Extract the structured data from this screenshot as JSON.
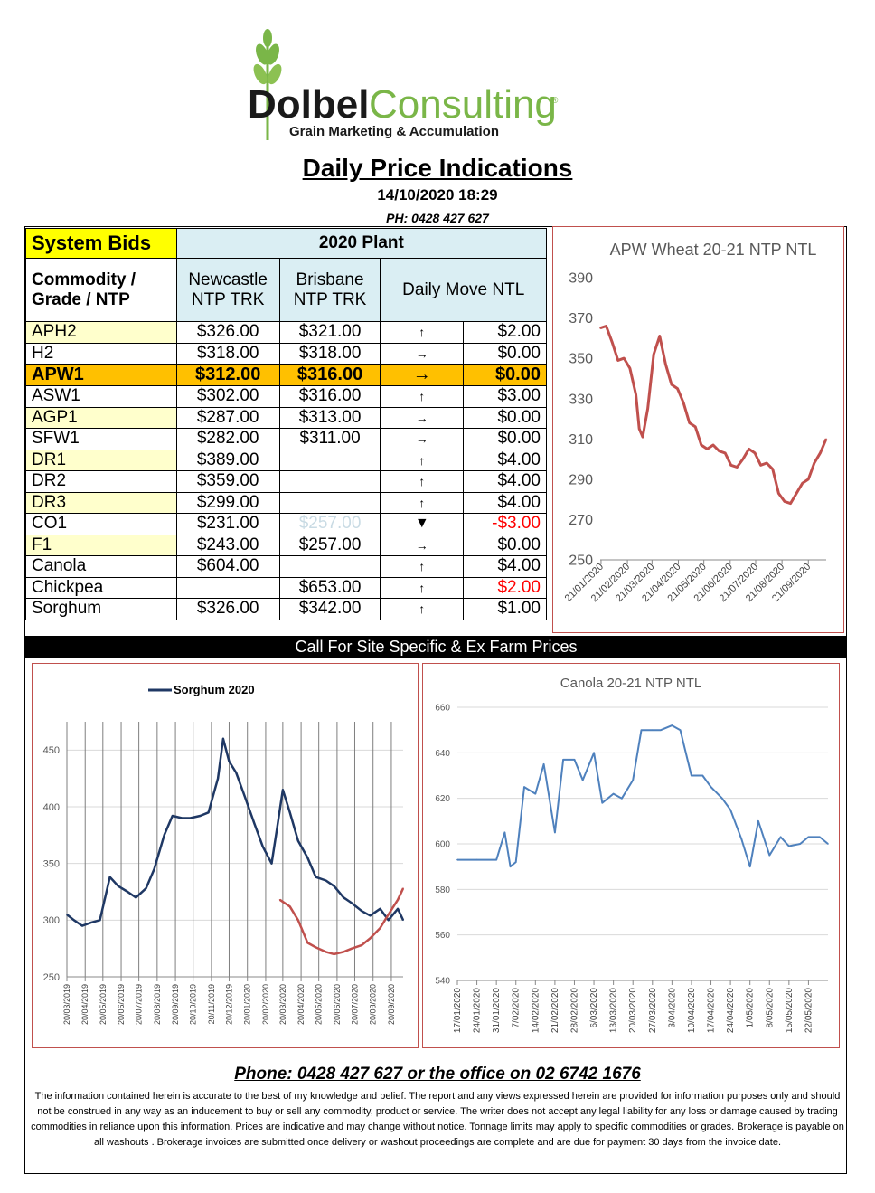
{
  "logo": {
    "brand_dark": "Dolbel",
    "brand_light": "Consulting",
    "registered": "®",
    "tagline": "Grain Marketing & Accumulation",
    "colors": {
      "dark": "#1a1a1a",
      "green": "#7ab648"
    }
  },
  "header": {
    "title": "Daily Price Indications",
    "datetime": "14/10/2020 18:29",
    "phone": "PH: 0428 427 627"
  },
  "table": {
    "system_bids": "System Bids",
    "plant": "2020 Plant",
    "col_commodity": "Commodity / Grade / NTP",
    "col_newcastle": "Newcastle NTP TRK",
    "col_brisbane": "Brisbane NTP TRK",
    "col_move": "Daily  Move NTL",
    "rows": [
      {
        "grade": "APH2",
        "newcastle": "$326.00",
        "brisbane": "$321.00",
        "arrow": "↑",
        "move": "$2.00"
      },
      {
        "grade": "H2",
        "newcastle": "$318.00",
        "brisbane": "$318.00",
        "arrow": "→",
        "move": "$0.00"
      },
      {
        "grade": "APW1",
        "newcastle": "$312.00",
        "brisbane": "$316.00",
        "arrow": "→",
        "move": "$0.00"
      },
      {
        "grade": "ASW1",
        "newcastle": "$302.00",
        "brisbane": "$316.00",
        "arrow": "↑",
        "move": "$3.00"
      },
      {
        "grade": "AGP1",
        "newcastle": "$287.00",
        "brisbane": "$313.00",
        "arrow": "→",
        "move": "$0.00"
      },
      {
        "grade": "SFW1",
        "newcastle": "$282.00",
        "brisbane": "$311.00",
        "arrow": "→",
        "move": "$0.00"
      },
      {
        "grade": "DR1",
        "newcastle": "$389.00",
        "brisbane": "",
        "arrow": "↑",
        "move": "$4.00"
      },
      {
        "grade": "DR2",
        "newcastle": "$359.00",
        "brisbane": "",
        "arrow": "↑",
        "move": "$4.00"
      },
      {
        "grade": "DR3",
        "newcastle": "$299.00",
        "brisbane": "",
        "arrow": "↑",
        "move": "$4.00"
      },
      {
        "grade": "CO1",
        "newcastle": "$231.00",
        "brisbane": "$257.00",
        "arrow": "▼",
        "move": "-$3.00"
      },
      {
        "grade": "F1",
        "newcastle": "$243.00",
        "brisbane": "$257.00",
        "arrow": "→",
        "move": "$0.00"
      },
      {
        "grade": "Canola",
        "newcastle": "$604.00",
        "brisbane": "",
        "arrow": "↑",
        "move": "$4.00"
      },
      {
        "grade": "Chickpea",
        "newcastle": "",
        "brisbane": "$653.00",
        "arrow": "↑",
        "move": "$2.00"
      },
      {
        "grade": "Sorghum",
        "newcastle": "$326.00",
        "brisbane": "$342.00",
        "arrow": "↑",
        "move": "$1.00"
      }
    ]
  },
  "call_bar": "Call For Site Specific & Ex Farm Prices",
  "chart_data": [
    {
      "type": "line",
      "title": "APW Wheat 20-21 NTP NTL",
      "xlabel": "",
      "ylabel": "",
      "ylim": [
        250,
        390
      ],
      "yticks": [
        250,
        270,
        290,
        310,
        330,
        350,
        370,
        390
      ],
      "xticks": [
        "21/01/2020",
        "21/02/2020",
        "21/03/2020",
        "21/04/2020",
        "21/05/2020",
        "21/06/2020",
        "21/07/2020",
        "21/08/2020",
        "21/09/2020"
      ],
      "grid": true,
      "color": "#c0504d",
      "x": [
        "2020-01-20",
        "2020-01-27",
        "2020-02-03",
        "2020-02-10",
        "2020-02-17",
        "2020-02-24",
        "2020-03-02",
        "2020-03-06",
        "2020-03-10",
        "2020-03-16",
        "2020-03-23",
        "2020-03-30",
        "2020-04-06",
        "2020-04-13",
        "2020-04-20",
        "2020-04-27",
        "2020-05-04",
        "2020-05-11",
        "2020-05-18",
        "2020-05-25",
        "2020-06-01",
        "2020-06-08",
        "2020-06-15",
        "2020-06-22",
        "2020-06-29",
        "2020-07-06",
        "2020-07-13",
        "2020-07-20",
        "2020-07-27",
        "2020-08-03",
        "2020-08-10",
        "2020-08-17",
        "2020-08-24",
        "2020-08-31",
        "2020-09-07",
        "2020-09-14",
        "2020-09-21",
        "2020-09-28",
        "2020-10-05",
        "2020-10-12"
      ],
      "y": [
        365,
        366,
        358,
        349,
        350,
        345,
        332,
        315,
        311,
        325,
        352,
        361,
        347,
        337,
        335,
        328,
        318,
        316,
        307,
        305,
        307,
        304,
        303,
        297,
        296,
        300,
        305,
        303,
        297,
        298,
        295,
        283,
        279,
        278,
        283,
        288,
        290,
        298,
        303,
        310
      ]
    },
    {
      "type": "line",
      "title": "",
      "legend": [
        "Sorghum 2020"
      ],
      "legend_position": "top",
      "xlabel": "",
      "ylabel": "",
      "ylim": [
        250,
        475
      ],
      "yticks": [
        250,
        300,
        350,
        400,
        450
      ],
      "xticks": [
        "20/03/2019",
        "20/04/2019",
        "20/05/2019",
        "20/06/2019",
        "20/07/2019",
        "20/08/2019",
        "20/09/2019",
        "20/10/2019",
        "20/11/2019",
        "20/12/2019",
        "20/01/2020",
        "20/02/2020",
        "20/03/2020",
        "20/04/2020",
        "20/05/2020",
        "20/06/2020",
        "20/07/2020",
        "20/08/2020",
        "20/09/2020"
      ],
      "grid": true,
      "series": [
        {
          "name": "Sorghum 2020",
          "color": "#1f3864",
          "x": [
            "2019-03-20",
            "2019-04-01",
            "2019-04-15",
            "2019-05-01",
            "2019-05-15",
            "2019-06-01",
            "2019-06-15",
            "2019-07-01",
            "2019-07-15",
            "2019-08-01",
            "2019-08-15",
            "2019-09-01",
            "2019-09-15",
            "2019-10-01",
            "2019-10-15",
            "2019-11-01",
            "2019-11-15",
            "2019-12-01",
            "2019-12-10",
            "2019-12-20",
            "2020-01-01",
            "2020-01-15",
            "2020-02-01",
            "2020-02-15",
            "2020-03-01",
            "2020-03-10",
            "2020-03-20",
            "2020-04-01",
            "2020-04-15",
            "2020-05-01",
            "2020-05-15",
            "2020-06-01",
            "2020-06-15",
            "2020-07-01",
            "2020-07-15",
            "2020-08-01",
            "2020-08-15",
            "2020-09-01",
            "2020-09-15",
            "2020-10-01",
            "2020-10-10"
          ],
          "y": [
            305,
            300,
            295,
            298,
            300,
            338,
            330,
            325,
            320,
            328,
            345,
            375,
            392,
            390,
            390,
            392,
            395,
            425,
            460,
            440,
            430,
            410,
            385,
            365,
            350,
            380,
            415,
            395,
            370,
            355,
            338,
            335,
            330,
            320,
            315,
            308,
            304,
            310,
            300,
            310,
            300
          ]
        },
        {
          "name": "",
          "color": "#c0504d",
          "x": [
            "2020-03-15",
            "2020-04-01",
            "2020-04-15",
            "2020-05-01",
            "2020-05-15",
            "2020-06-01",
            "2020-06-15",
            "2020-07-01",
            "2020-07-15",
            "2020-08-01",
            "2020-08-15",
            "2020-09-01",
            "2020-09-15",
            "2020-10-01",
            "2020-10-10"
          ],
          "y": [
            318,
            312,
            300,
            280,
            276,
            272,
            270,
            272,
            275,
            278,
            284,
            293,
            305,
            318,
            328
          ]
        }
      ]
    },
    {
      "type": "line",
      "title": "Canola 20-21 NTP NTL",
      "xlabel": "",
      "ylabel": "",
      "ylim": [
        540,
        660
      ],
      "yticks": [
        540,
        560,
        580,
        600,
        620,
        640,
        660
      ],
      "xticks": [
        "17/01/2020",
        "24/01/2020",
        "31/01/2020",
        "7/02/2020",
        "14/02/2020",
        "21/02/2020",
        "28/02/2020",
        "6/03/2020",
        "13/03/2020",
        "20/03/2020",
        "27/03/2020",
        "3/04/2020",
        "10/04/2020",
        "17/04/2020",
        "24/04/2020",
        "1/05/2020",
        "8/05/2020",
        "15/05/2020",
        "22/05/2020"
      ],
      "grid": true,
      "color": "#4f81bd",
      "x": [
        "2020-01-17",
        "2020-01-24",
        "2020-01-31",
        "2020-02-03",
        "2020-02-05",
        "2020-02-07",
        "2020-02-10",
        "2020-02-14",
        "2020-02-17",
        "2020-02-21",
        "2020-02-24",
        "2020-02-28",
        "2020-03-02",
        "2020-03-06",
        "2020-03-09",
        "2020-03-13",
        "2020-03-16",
        "2020-03-20",
        "2020-03-23",
        "2020-03-27",
        "2020-03-30",
        "2020-04-03",
        "2020-04-06",
        "2020-04-10",
        "2020-04-14",
        "2020-04-17",
        "2020-04-21",
        "2020-04-24",
        "2020-04-28",
        "2020-05-01",
        "2020-05-04",
        "2020-05-08",
        "2020-05-12",
        "2020-05-15",
        "2020-05-19",
        "2020-05-22",
        "2020-05-26",
        "2020-05-29"
      ],
      "y": [
        593,
        593,
        593,
        605,
        590,
        592,
        625,
        622,
        635,
        605,
        637,
        637,
        628,
        640,
        618,
        622,
        620,
        628,
        650,
        650,
        650,
        652,
        650,
        630,
        630,
        625,
        620,
        615,
        602,
        590,
        610,
        595,
        603,
        599,
        600,
        603,
        603,
        600
      ]
    }
  ],
  "footer": {
    "phone": "Phone: 0428 427 627 or the office on 02 6742 1676",
    "disclaimer": "The information contained herein is accurate to the best of my knowledge and belief.  The report and any views expressed herein are provided for information purposes only and should not be construed in any way as an inducement to buy or sell any commodity, product or service. The writer does not accept any legal liability for any loss or damage caused by trading commodities in reliance upon this information. Prices are indicative and may change without notice. Tonnage limits may apply to specific commodities or grades.  Brokerage is payable on all washouts . Brokerage invoices are submitted once delivery or washout proceedings are complete and are due for payment 30 days from the invoice date."
  }
}
